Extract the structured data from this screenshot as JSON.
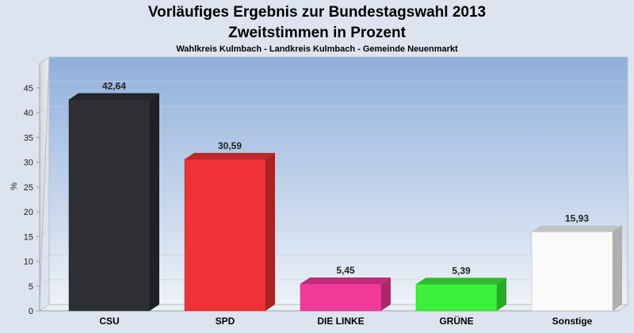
{
  "chart_data": {
    "type": "bar",
    "title": "Vorläufiges Ergebnis zur Bundestagswahl 2013",
    "subtitle": "Zweitstimmen in Prozent",
    "caption": "Wahlkreis Kulmbach - Landkreis Kulmbach - Gemeinde Neuenmarkt",
    "ylabel": "%",
    "xlabel": "",
    "ylim": [
      0,
      48
    ],
    "yticks": [
      "0",
      "5",
      "10",
      "15",
      "20",
      "25",
      "30",
      "35",
      "40",
      "45"
    ],
    "categories": [
      "CSU",
      "SPD",
      "DIE LINKE",
      "GRÜNE",
      "Sonstige"
    ],
    "values": [
      42.64,
      30.59,
      5.45,
      5.39,
      15.93
    ],
    "value_labels": [
      "42,64",
      "30,59",
      "5,45",
      "5,39",
      "15,93"
    ],
    "colors": [
      "#2d2f35",
      "#f03236",
      "#f23a9a",
      "#3cf03a",
      "#fafafa"
    ],
    "grid": true,
    "legend": "none"
  }
}
